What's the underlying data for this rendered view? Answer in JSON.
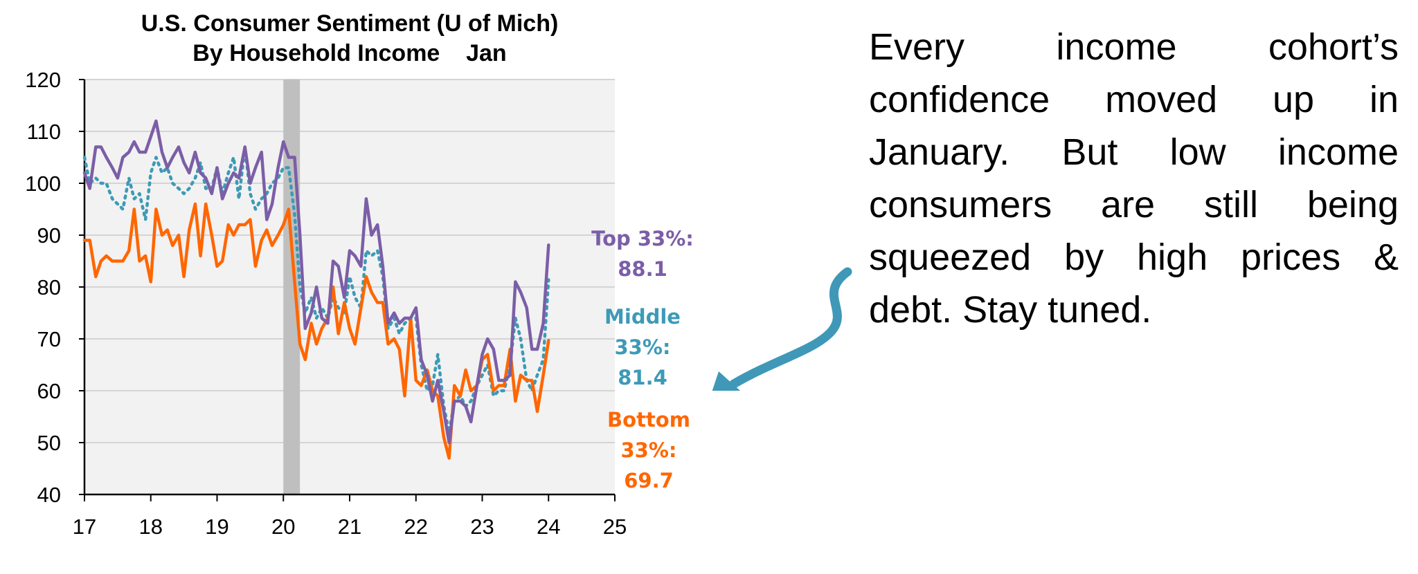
{
  "colors": {
    "top": "#7b5ea7",
    "middle": "#3d9ab7",
    "bottom": "#ff6600",
    "arrow": "#3f98b8",
    "plot_bg": "#f2f2f2",
    "grid": "#d4d4d4",
    "recession": "#bfbfbf"
  },
  "annotation": {
    "text": "Every income cohort’s confidence moved up in January. But low income consumers are still being squeezed by high prices & debt. Stay tuned."
  },
  "icons": {
    "arrow": "curved-arrow-icon"
  },
  "chart_data": {
    "type": "line",
    "title": "U.S. Consumer Sentiment (U of Mich)",
    "subtitle": "By Household Income    Jan",
    "xlabel": "",
    "ylabel": "",
    "xlim": [
      17,
      25
    ],
    "ylim": [
      40,
      120
    ],
    "xticks": [
      "17",
      "18",
      "19",
      "20",
      "21",
      "22",
      "23",
      "24",
      "25"
    ],
    "yticks": [
      "40",
      "50",
      "60",
      "70",
      "80",
      "90",
      "100",
      "110",
      "120"
    ],
    "grid": true,
    "recession_band": [
      20.0,
      20.25
    ],
    "series": [
      {
        "name": "Top 33%",
        "end_label": [
          "Top 33%:",
          "88.1"
        ],
        "x": [
          17.0,
          17.08,
          17.17,
          17.25,
          17.33,
          17.42,
          17.5,
          17.58,
          17.67,
          17.75,
          17.83,
          17.92,
          18.0,
          18.08,
          18.17,
          18.25,
          18.33,
          18.42,
          18.5,
          18.58,
          18.67,
          18.75,
          18.83,
          18.92,
          19.0,
          19.08,
          19.17,
          19.25,
          19.33,
          19.42,
          19.5,
          19.58,
          19.67,
          19.75,
          19.83,
          19.92,
          20.0,
          20.08,
          20.17,
          20.25,
          20.33,
          20.42,
          20.5,
          20.58,
          20.67,
          20.75,
          20.83,
          20.92,
          21.0,
          21.08,
          21.17,
          21.25,
          21.33,
          21.42,
          21.5,
          21.58,
          21.67,
          21.75,
          21.83,
          21.92,
          22.0,
          22.08,
          22.17,
          22.25,
          22.33,
          22.42,
          22.5,
          22.58,
          22.67,
          22.75,
          22.83,
          22.92,
          23.0,
          23.08,
          23.17,
          23.25,
          23.33,
          23.42,
          23.5,
          23.58,
          23.67,
          23.75,
          23.83,
          23.92,
          24.0
        ],
        "values": [
          102,
          99,
          107,
          107,
          105,
          103,
          101,
          105,
          106,
          108,
          106,
          106,
          109,
          112,
          106,
          103,
          105,
          107,
          104,
          102,
          106,
          102,
          101,
          98,
          103,
          97,
          100,
          102,
          101,
          107,
          100,
          103,
          106,
          93,
          96,
          103,
          108,
          105,
          105,
          90,
          72,
          75,
          80,
          74,
          73,
          85,
          84,
          78,
          87,
          86,
          84,
          97,
          90,
          92,
          84,
          73,
          75,
          73,
          74,
          74,
          76,
          66,
          63,
          58,
          62,
          56,
          50,
          58,
          58,
          57,
          54,
          61,
          67,
          70,
          68,
          62,
          62,
          63,
          81,
          79,
          76,
          68,
          68,
          73,
          88.1
        ]
      },
      {
        "name": "Middle 33%",
        "end_label": [
          "Middle",
          "33%:",
          "81.4"
        ],
        "x": [
          17.0,
          17.08,
          17.17,
          17.25,
          17.33,
          17.42,
          17.5,
          17.58,
          17.67,
          17.75,
          17.83,
          17.92,
          18.0,
          18.08,
          18.17,
          18.25,
          18.33,
          18.42,
          18.5,
          18.58,
          18.67,
          18.75,
          18.83,
          18.92,
          19.0,
          19.08,
          19.17,
          19.25,
          19.33,
          19.42,
          19.5,
          19.58,
          19.67,
          19.75,
          19.83,
          19.92,
          20.0,
          20.08,
          20.17,
          20.25,
          20.33,
          20.42,
          20.5,
          20.58,
          20.67,
          20.75,
          20.83,
          20.92,
          21.0,
          21.08,
          21.17,
          21.25,
          21.33,
          21.42,
          21.5,
          21.58,
          21.67,
          21.75,
          21.83,
          21.92,
          22.0,
          22.08,
          22.17,
          22.25,
          22.33,
          22.42,
          22.5,
          22.58,
          22.67,
          22.75,
          22.83,
          22.92,
          23.0,
          23.08,
          23.17,
          23.25,
          23.33,
          23.42,
          23.5,
          23.58,
          23.67,
          23.75,
          23.83,
          23.92,
          24.0
        ],
        "values": [
          105,
          100,
          101,
          100,
          100,
          97,
          96,
          95,
          101,
          97,
          98,
          93,
          102,
          105,
          102,
          103,
          100,
          99,
          98,
          99,
          101,
          104,
          99,
          99,
          103,
          98,
          102,
          105,
          97,
          107,
          98,
          95,
          97,
          98,
          100,
          101,
          103,
          103,
          94,
          80,
          75,
          78,
          74,
          76,
          74,
          78,
          76,
          75,
          82,
          78,
          76,
          87,
          86,
          87,
          82,
          72,
          74,
          71,
          73,
          74,
          74,
          65,
          60,
          61,
          67,
          57,
          52,
          58,
          59,
          57,
          58,
          61,
          63,
          65,
          59,
          60,
          60,
          65,
          74,
          70,
          62,
          60,
          63,
          66,
          81.4
        ]
      },
      {
        "name": "Bottom 33%",
        "end_label": [
          "Bottom",
          "33%:",
          "69.7"
        ],
        "x": [
          17.0,
          17.08,
          17.17,
          17.25,
          17.33,
          17.42,
          17.5,
          17.58,
          17.67,
          17.75,
          17.83,
          17.92,
          18.0,
          18.08,
          18.17,
          18.25,
          18.33,
          18.42,
          18.5,
          18.58,
          18.67,
          18.75,
          18.83,
          18.92,
          19.0,
          19.08,
          19.17,
          19.25,
          19.33,
          19.42,
          19.5,
          19.58,
          19.67,
          19.75,
          19.83,
          19.92,
          20.0,
          20.08,
          20.17,
          20.25,
          20.33,
          20.42,
          20.5,
          20.58,
          20.67,
          20.75,
          20.83,
          20.92,
          21.0,
          21.08,
          21.17,
          21.25,
          21.33,
          21.42,
          21.5,
          21.58,
          21.67,
          21.75,
          21.83,
          21.92,
          22.0,
          22.08,
          22.17,
          22.25,
          22.33,
          22.42,
          22.5,
          22.58,
          22.67,
          22.75,
          22.83,
          22.92,
          23.0,
          23.08,
          23.17,
          23.25,
          23.33,
          23.42,
          23.5,
          23.58,
          23.67,
          23.75,
          23.83,
          23.92,
          24.0
        ],
        "values": [
          89,
          89,
          82,
          85,
          86,
          85,
          85,
          85,
          87,
          95,
          85,
          86,
          81,
          95,
          90,
          91,
          88,
          90,
          82,
          91,
          96,
          86,
          96,
          90,
          84,
          85,
          92,
          90,
          92,
          92,
          93,
          84,
          89,
          91,
          88,
          90,
          92,
          95,
          81,
          69,
          66,
          73,
          69,
          72,
          74,
          80,
          71,
          77,
          72,
          69,
          76,
          82,
          79,
          77,
          77,
          69,
          70,
          68,
          59,
          74,
          62,
          61,
          64,
          60,
          59,
          51,
          47,
          61,
          59,
          64,
          60,
          61,
          66,
          67,
          60,
          61,
          61,
          68,
          58,
          63,
          62,
          62,
          56,
          63,
          69.7
        ]
      }
    ]
  }
}
